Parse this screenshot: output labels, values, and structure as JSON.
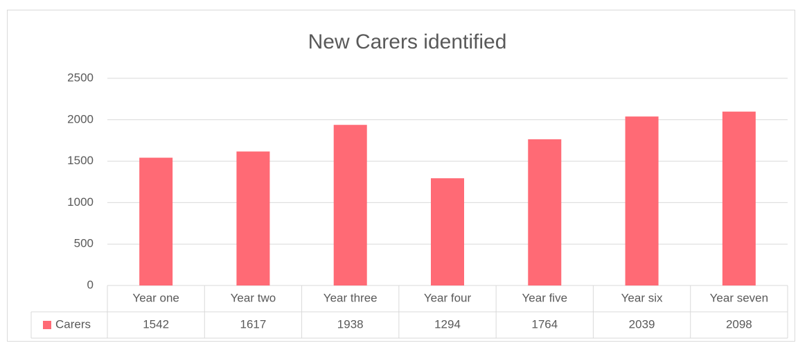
{
  "chart_data": {
    "type": "bar",
    "title": "New Carers identified",
    "categories": [
      "Year one",
      "Year two",
      "Year three",
      "Year four",
      "Year five",
      "Year six",
      "Year seven"
    ],
    "series": [
      {
        "name": "Carers",
        "color": "#ff6a75",
        "values": [
          1542,
          1617,
          1938,
          1294,
          1764,
          2039,
          2098
        ]
      }
    ],
    "ylim": [
      0,
      2500
    ],
    "yticks": [
      0,
      500,
      1000,
      1500,
      2000,
      2500
    ],
    "grid": true
  }
}
